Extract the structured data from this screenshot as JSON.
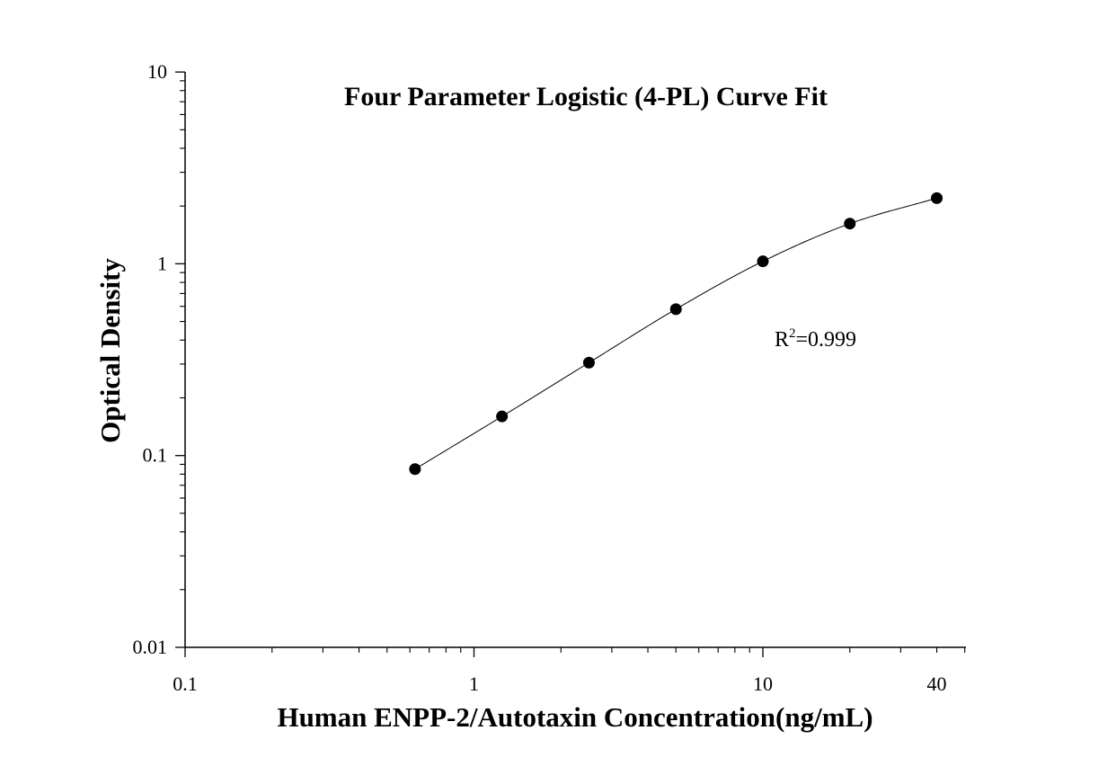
{
  "chart_data": {
    "type": "scatter",
    "title": "Four Parameter Logistic (4-PL) Curve Fit",
    "xlabel": "Human ENPP-2/Autotaxin Concentration(ng/mL)",
    "ylabel": "Optical Density",
    "xscale": "log",
    "yscale": "log",
    "xlim": [
      0.1,
      50
    ],
    "ylim": [
      0.01,
      10
    ],
    "xticks": [
      0.1,
      1,
      10,
      40
    ],
    "xtick_labels": [
      "0.1",
      "1",
      "10",
      "40"
    ],
    "yticks": [
      0.01,
      0.1,
      1,
      10
    ],
    "ytick_labels": [
      "0.01",
      "0.1",
      "1",
      "10"
    ],
    "grid": false,
    "legend": "none",
    "annotation": {
      "base": "R",
      "sup": "2",
      "rest": "=0.999"
    },
    "series": [
      {
        "x": [
          0.625,
          1.25,
          2.5,
          5,
          10,
          20,
          40
        ],
        "y": [
          0.085,
          0.16,
          0.305,
          0.58,
          1.03,
          1.62,
          2.2
        ]
      }
    ],
    "fit_curve": "4-PL",
    "colors": {
      "points": "#000000",
      "curve": "#000000",
      "axes": "#000000"
    }
  }
}
